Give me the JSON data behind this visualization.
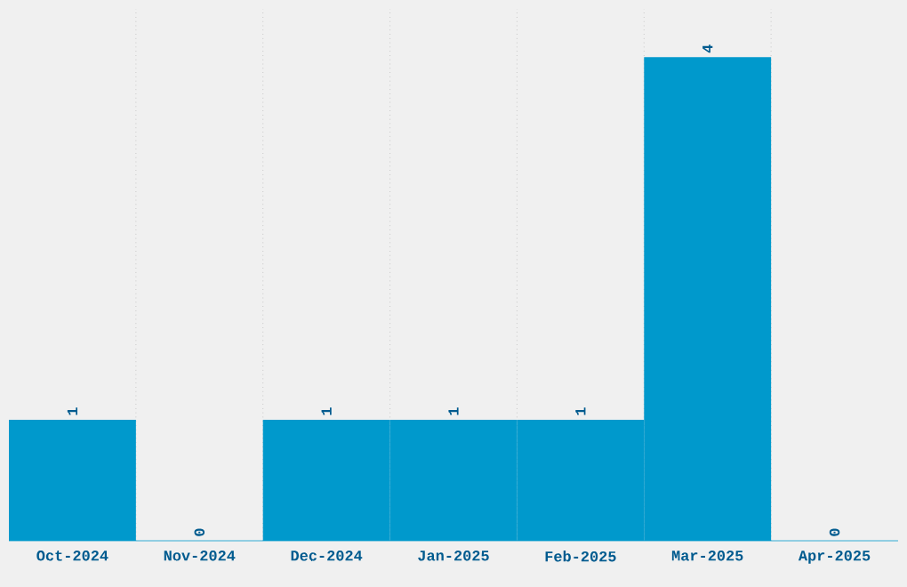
{
  "chart_data": {
    "type": "bar",
    "categories": [
      "Oct-2024",
      "Nov-2024",
      "Dec-2024",
      "Jan-2025",
      "Feb-2025",
      "Mar-2025",
      "Apr-2025"
    ],
    "values": [
      1,
      0,
      1,
      1,
      1,
      4,
      0
    ],
    "color": "#0099cc",
    "ylim": [
      0,
      4.4
    ],
    "tick_labels": "x",
    "grid": "x",
    "data_labels": true
  }
}
